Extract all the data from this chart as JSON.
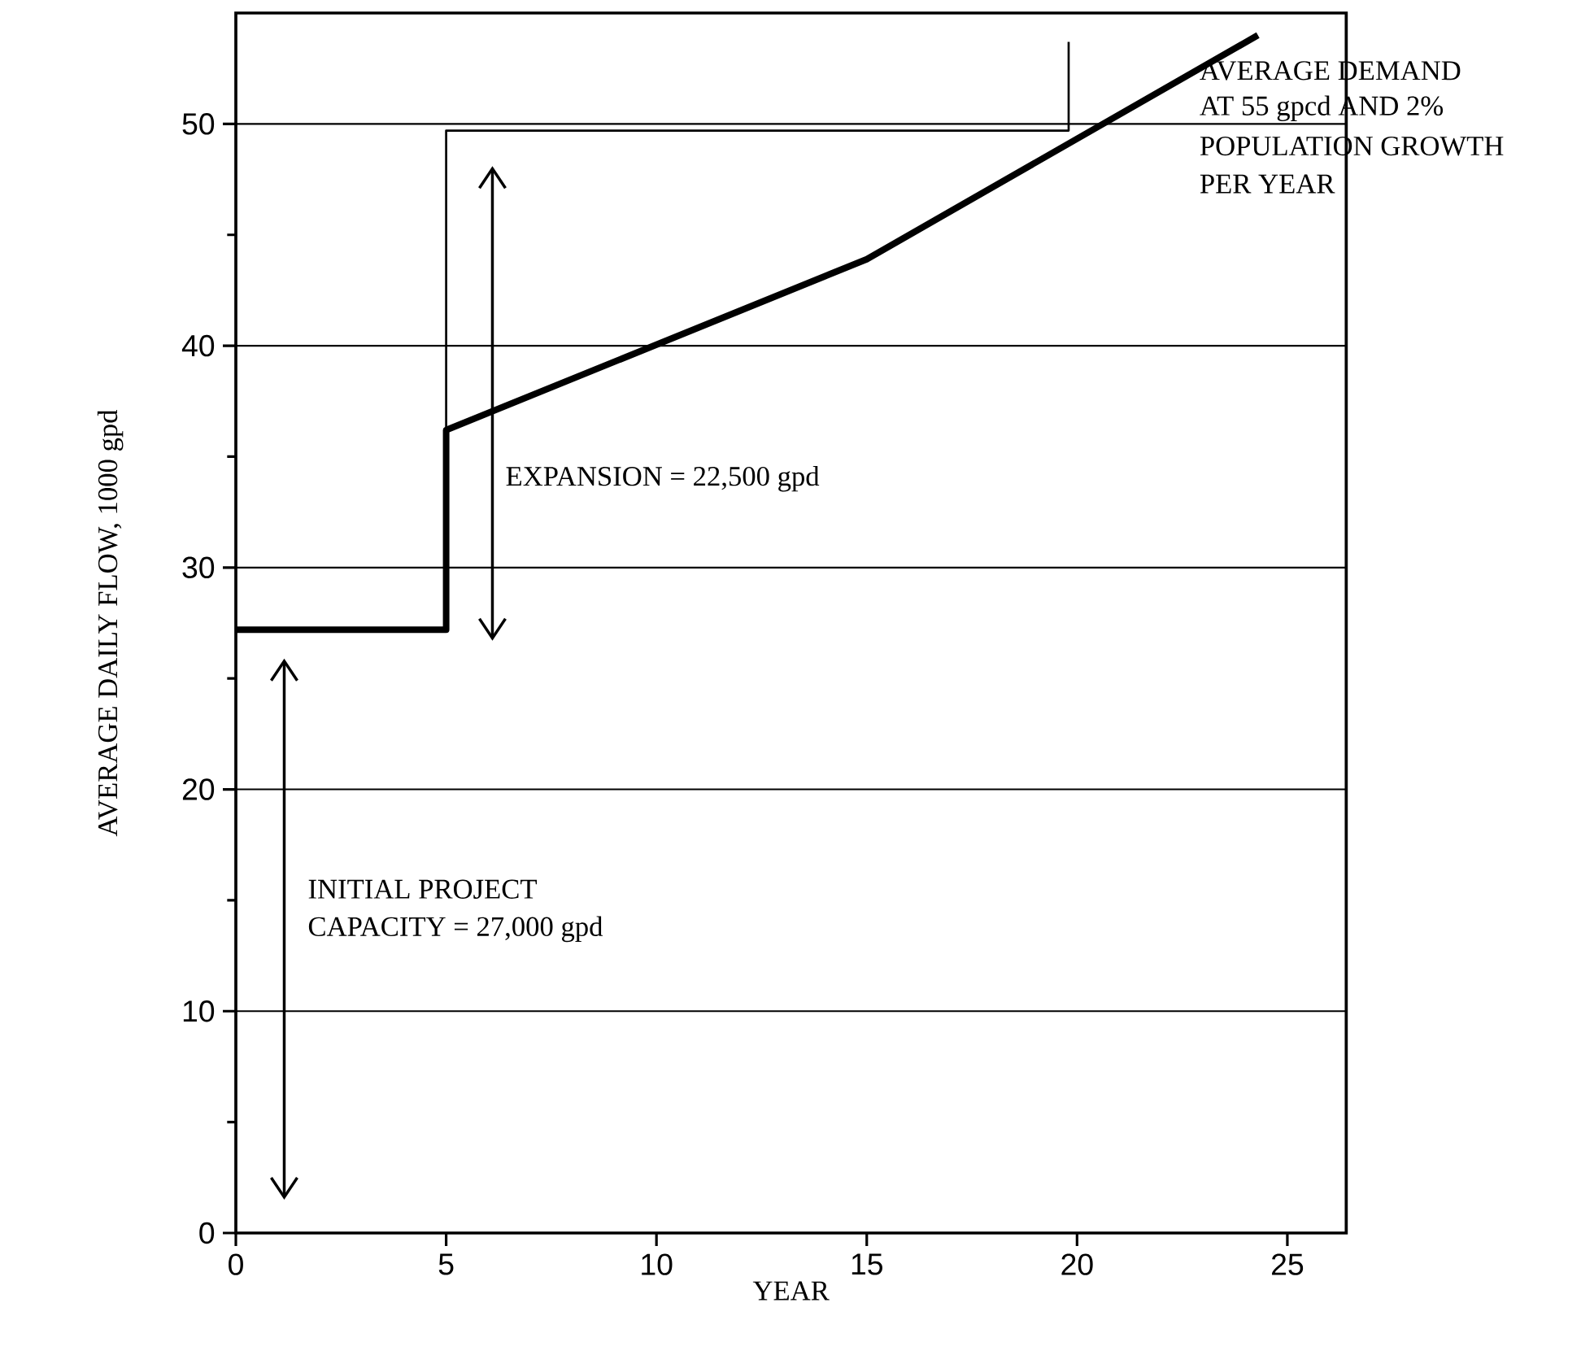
{
  "chart_data": {
    "type": "line",
    "xlabel": "YEAR",
    "ylabel": "AVERAGE DAILY FLOW,  1000 gpd",
    "xlim": [
      0,
      26.4
    ],
    "ylim": [
      0,
      55
    ],
    "xticks": [
      0,
      5,
      10,
      15,
      20,
      25
    ],
    "yticks": [
      0,
      10,
      20,
      30,
      40,
      50
    ],
    "grid": "y",
    "line_style": "solid",
    "series": [
      {
        "color": "#000000",
        "x": [
          0,
          5.0,
          5.0,
          15,
          24.3
        ],
        "values": [
          27.2,
          27.2,
          36.2,
          43.9,
          54.0
        ]
      },
      {
        "type": "step",
        "color": "#000000",
        "x": [
          0,
          5.0,
          19.8
        ],
        "values": [
          27.2,
          49.7,
          53.7
        ]
      }
    ],
    "annotations": [
      "INITIAL PROJECT",
      "CAPACITY = 27,000 gpd",
      "EXPANSION = 22,500 gpd",
      "AVERAGE DEMAND",
      "AT 55 gpcd AND 2%",
      "POPULATION GROWTH",
      "PER YEAR"
    ]
  }
}
